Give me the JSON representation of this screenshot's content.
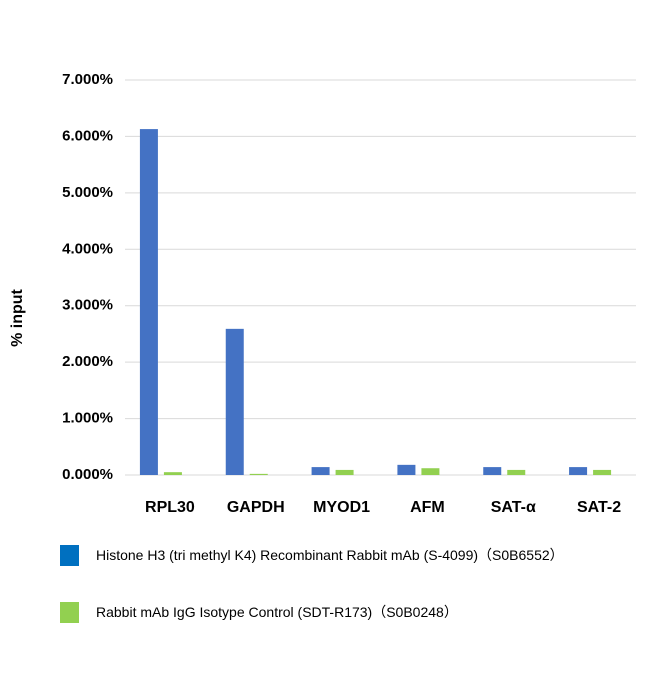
{
  "chart_data": {
    "type": "bar",
    "y_label": "% input",
    "categories": [
      "RPL30",
      "GAPDH",
      "MYOD1",
      "AFM",
      "SAT-α",
      "SAT-2"
    ],
    "series": [
      {
        "name": "Histone H3 (tri methyl K4) Recombinant Rabbit mAb (S-4099)（S0B6552）",
        "color": "#4472c4",
        "legend_color": "#0070c0",
        "values": [
          6.13,
          2.59,
          0.14,
          0.18,
          0.14,
          0.14
        ]
      },
      {
        "name": "Rabbit mAb IgG Isotype Control (SDT-R173)（S0B0248）",
        "color": "#92d050",
        "legend_color": "#92d050",
        "values": [
          0.05,
          0.02,
          0.09,
          0.12,
          0.09,
          0.09
        ]
      }
    ],
    "ylim": [
      0,
      7
    ],
    "yticks": [
      {
        "value": 0,
        "label": "0.000%"
      },
      {
        "value": 1,
        "label": "1.000%"
      },
      {
        "value": 2,
        "label": "2.000%"
      },
      {
        "value": 3,
        "label": "3.000%"
      },
      {
        "value": 4,
        "label": "4.000%"
      },
      {
        "value": 5,
        "label": "5.000%"
      },
      {
        "value": 6,
        "label": "6.000%"
      },
      {
        "value": 7,
        "label": "7.000%"
      }
    ],
    "grid": true
  }
}
